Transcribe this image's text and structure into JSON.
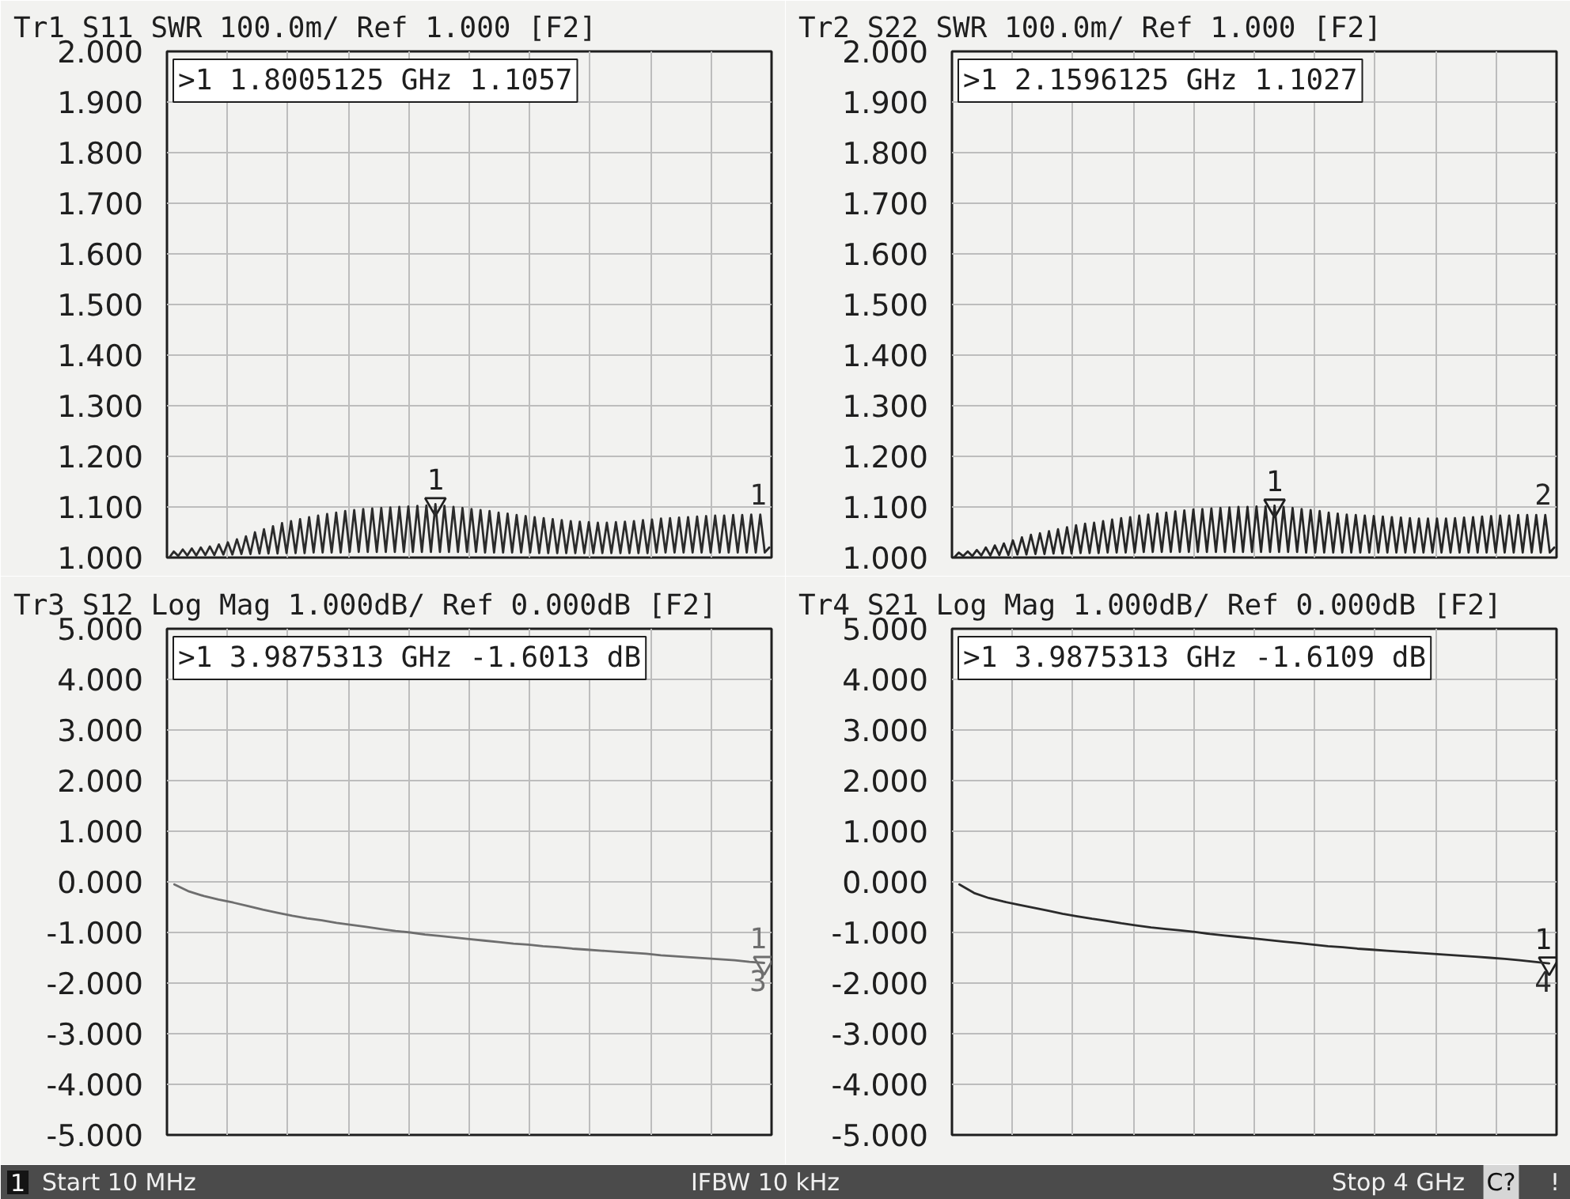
{
  "chart_data": [
    {
      "type": "line",
      "title": "Tr1 S11 SWR 100.0m/ Ref 1.000 [F2]",
      "categories": [
        null,
        null,
        null,
        null,
        null,
        null,
        null,
        null,
        null,
        null,
        null,
        null,
        null,
        null,
        null,
        null,
        null,
        null,
        null,
        null,
        null,
        null,
        null,
        null,
        null,
        null,
        null,
        null,
        null,
        null,
        null,
        null,
        null,
        null,
        null,
        null,
        null,
        null,
        null,
        null,
        null,
        null,
        null,
        null,
        null,
        null,
        null,
        null,
        null,
        null,
        null,
        null,
        null,
        null,
        null,
        null,
        null,
        null,
        null,
        null,
        null,
        null,
        null,
        null,
        null,
        null,
        null,
        null,
        null,
        null,
        null,
        null,
        null,
        null,
        null,
        null,
        null,
        null,
        null,
        null,
        null,
        null,
        null,
        null,
        null,
        null,
        null,
        null,
        null,
        null,
        null,
        null,
        null,
        null,
        null,
        null,
        null,
        null,
        null,
        null,
        null,
        null,
        null,
        null,
        null,
        null,
        null,
        null,
        null,
        null,
        null,
        null,
        null,
        null,
        null,
        null,
        null,
        null,
        null,
        null,
        null,
        null,
        null,
        null,
        null,
        null,
        null,
        null,
        null,
        null,
        null,
        null,
        null,
        null
      ],
      "series": [
        {
          "type": "scatter",
          "name": "1",
          "color": "#1e1e1e",
          "marker": "triangle",
          "values": [
            null,
            null,
            null,
            null,
            null,
            null,
            null,
            null,
            null,
            null,
            null,
            null,
            null,
            null,
            null,
            null,
            null,
            null,
            null,
            null,
            null,
            null,
            null,
            null,
            null,
            null,
            null,
            null,
            null,
            null,
            null,
            null,
            null,
            null,
            null,
            null,
            null,
            null,
            null,
            null,
            null,
            null,
            null,
            null,
            null,
            null,
            null,
            null,
            null,
            null,
            null,
            null,
            null,
            null,
            null,
            null,
            null,
            null,
            null,
            1.1057,
            null,
            null,
            null,
            null,
            null,
            null,
            null,
            null,
            null,
            null,
            null,
            null,
            null,
            null,
            null,
            null,
            null,
            null,
            null,
            null,
            null,
            null,
            null,
            null,
            null,
            null,
            null,
            null,
            null,
            null,
            null,
            null,
            null,
            null,
            null,
            null,
            null,
            null,
            null,
            null,
            null,
            null,
            null,
            null,
            null,
            null,
            null,
            null,
            null,
            null,
            null,
            null,
            null,
            null,
            null,
            null,
            null,
            null,
            null,
            null,
            null,
            null,
            null,
            null,
            null,
            null,
            null,
            null,
            null,
            null,
            null,
            null,
            null,
            null
          ]
        },
        {
          "name": "1",
          "color": "#2b2b2b",
          "values": [
            1.0,
            1.012,
            1.003,
            1.016,
            1.004,
            1.018,
            1.004,
            1.02,
            1.005,
            1.022,
            1.005,
            1.026,
            1.006,
            1.03,
            1.006,
            1.036,
            1.007,
            1.042,
            1.007,
            1.05,
            1.008,
            1.056,
            1.008,
            1.062,
            1.008,
            1.068,
            1.009,
            1.072,
            1.009,
            1.076,
            1.009,
            1.08,
            1.01,
            1.083,
            1.01,
            1.086,
            1.01,
            1.089,
            1.01,
            1.092,
            1.011,
            1.094,
            1.011,
            1.096,
            1.011,
            1.097,
            1.011,
            1.098,
            1.011,
            1.099,
            1.011,
            1.1,
            1.011,
            1.101,
            1.011,
            1.102,
            1.011,
            1.103,
            1.011,
            1.1057,
            1.011,
            1.102,
            1.011,
            1.1,
            1.011,
            1.098,
            1.011,
            1.096,
            1.011,
            1.094,
            1.01,
            1.092,
            1.01,
            1.089,
            1.01,
            1.087,
            1.01,
            1.084,
            1.01,
            1.082,
            1.01,
            1.08,
            1.009,
            1.078,
            1.009,
            1.076,
            1.009,
            1.074,
            1.009,
            1.072,
            1.009,
            1.071,
            1.009,
            1.07,
            1.009,
            1.069,
            1.009,
            1.069,
            1.009,
            1.07,
            1.009,
            1.071,
            1.009,
            1.072,
            1.009,
            1.074,
            1.009,
            1.075,
            1.01,
            1.077,
            1.01,
            1.078,
            1.01,
            1.079,
            1.01,
            1.08,
            1.01,
            1.081,
            1.01,
            1.082,
            1.01,
            1.083,
            1.01,
            1.083,
            1.01,
            1.084,
            1.01,
            1.084,
            1.01,
            1.085,
            1.01,
            1.085,
            1.01,
            1.02
          ]
        }
      ],
      "ylim": [
        1.0,
        2.0
      ],
      "yticks": [
        {
          "value": 1.0,
          "label": "1.000"
        },
        {
          "value": 1.1,
          "label": "1.100"
        },
        {
          "value": 1.2,
          "label": "1.200"
        },
        {
          "value": 1.3,
          "label": "1.300"
        },
        {
          "value": 1.4,
          "label": "1.400"
        },
        {
          "value": 1.5,
          "label": "1.500"
        },
        {
          "value": 1.6,
          "label": "1.600"
        },
        {
          "value": 1.7,
          "label": "1.700"
        },
        {
          "value": 1.8,
          "label": "1.800"
        },
        {
          "value": 1.9,
          "label": "1.900"
        },
        {
          "value": 2.0,
          "label": "2.000"
        }
      ],
      "tick_labels": "y",
      "grid": true,
      "annotations": [
        ">1 1.8005125 GHz 1.1057"
      ]
    },
    {
      "type": "line",
      "title": "Tr2 S22 SWR 100.0m/ Ref 1.000 [F2]",
      "categories": [
        null,
        null,
        null,
        null,
        null,
        null,
        null,
        null,
        null,
        null,
        null,
        null,
        null,
        null,
        null,
        null,
        null,
        null,
        null,
        null,
        null,
        null,
        null,
        null,
        null,
        null,
        null,
        null,
        null,
        null,
        null,
        null,
        null,
        null,
        null,
        null,
        null,
        null,
        null,
        null,
        null,
        null,
        null,
        null,
        null,
        null,
        null,
        null,
        null,
        null,
        null,
        null,
        null,
        null,
        null,
        null,
        null,
        null,
        null,
        null,
        null,
        null,
        null,
        null,
        null,
        null,
        null,
        null,
        null,
        null,
        null,
        null,
        null,
        null,
        null,
        null,
        null,
        null,
        null,
        null,
        null,
        null,
        null,
        null,
        null,
        null,
        null,
        null,
        null,
        null,
        null,
        null,
        null,
        null,
        null,
        null,
        null,
        null,
        null,
        null,
        null,
        null,
        null,
        null,
        null,
        null,
        null,
        null,
        null,
        null,
        null,
        null,
        null,
        null,
        null,
        null,
        null,
        null,
        null,
        null,
        null,
        null,
        null,
        null,
        null,
        null,
        null,
        null,
        null,
        null,
        null,
        null,
        null,
        null
      ],
      "series": [
        {
          "type": "scatter",
          "name": "1",
          "color": "#1e1e1e",
          "marker": "triangle",
          "values": [
            null,
            null,
            null,
            null,
            null,
            null,
            null,
            null,
            null,
            null,
            null,
            null,
            null,
            null,
            null,
            null,
            null,
            null,
            null,
            null,
            null,
            null,
            null,
            null,
            null,
            null,
            null,
            null,
            null,
            null,
            null,
            null,
            null,
            null,
            null,
            null,
            null,
            null,
            null,
            null,
            null,
            null,
            null,
            null,
            null,
            null,
            null,
            null,
            null,
            null,
            null,
            null,
            null,
            null,
            null,
            null,
            null,
            null,
            null,
            null,
            null,
            null,
            null,
            null,
            null,
            null,
            null,
            null,
            null,
            null,
            null,
            1.1027,
            null,
            null,
            null,
            null,
            null,
            null,
            null,
            null,
            null,
            null,
            null,
            null,
            null,
            null,
            null,
            null,
            null,
            null,
            null,
            null,
            null,
            null,
            null,
            null,
            null,
            null,
            null,
            null,
            null,
            null,
            null,
            null,
            null,
            null,
            null,
            null,
            null,
            null,
            null,
            null,
            null,
            null,
            null,
            null,
            null,
            null,
            null,
            null,
            null,
            null,
            null,
            null,
            null,
            null,
            null,
            null,
            null,
            null,
            null,
            null,
            null,
            null
          ]
        },
        {
          "name": "2",
          "color": "#262626",
          "values": [
            1.0,
            1.01,
            1.003,
            1.012,
            1.003,
            1.015,
            1.004,
            1.02,
            1.004,
            1.024,
            1.005,
            1.028,
            1.005,
            1.034,
            1.006,
            1.04,
            1.006,
            1.045,
            1.007,
            1.048,
            1.007,
            1.052,
            1.008,
            1.056,
            1.008,
            1.06,
            1.008,
            1.064,
            1.009,
            1.067,
            1.009,
            1.069,
            1.009,
            1.072,
            1.01,
            1.075,
            1.01,
            1.078,
            1.01,
            1.08,
            1.01,
            1.083,
            1.011,
            1.085,
            1.011,
            1.087,
            1.011,
            1.089,
            1.011,
            1.091,
            1.011,
            1.093,
            1.011,
            1.095,
            1.011,
            1.096,
            1.011,
            1.097,
            1.011,
            1.098,
            1.011,
            1.099,
            1.011,
            1.1,
            1.011,
            1.1,
            1.011,
            1.101,
            1.011,
            1.101,
            1.011,
            1.1027,
            1.011,
            1.1,
            1.011,
            1.098,
            1.011,
            1.096,
            1.01,
            1.094,
            1.01,
            1.092,
            1.01,
            1.089,
            1.01,
            1.087,
            1.01,
            1.085,
            1.01,
            1.084,
            1.01,
            1.083,
            1.01,
            1.082,
            1.01,
            1.081,
            1.01,
            1.08,
            1.01,
            1.079,
            1.01,
            1.078,
            1.01,
            1.077,
            1.01,
            1.077,
            1.01,
            1.077,
            1.01,
            1.077,
            1.01,
            1.078,
            1.01,
            1.079,
            1.01,
            1.08,
            1.01,
            1.081,
            1.01,
            1.082,
            1.01,
            1.083,
            1.01,
            1.083,
            1.01,
            1.084,
            1.01,
            1.084,
            1.01,
            1.084,
            1.01,
            1.084,
            1.01,
            1.02
          ]
        }
      ],
      "ylim": [
        1.0,
        2.0
      ],
      "yticks": [
        {
          "value": 1.0,
          "label": "1.000"
        },
        {
          "value": 1.1,
          "label": "1.100"
        },
        {
          "value": 1.2,
          "label": "1.200"
        },
        {
          "value": 1.3,
          "label": "1.300"
        },
        {
          "value": 1.4,
          "label": "1.400"
        },
        {
          "value": 1.5,
          "label": "1.500"
        },
        {
          "value": 1.6,
          "label": "1.600"
        },
        {
          "value": 1.7,
          "label": "1.700"
        },
        {
          "value": 1.8,
          "label": "1.800"
        },
        {
          "value": 1.9,
          "label": "1.900"
        },
        {
          "value": 2.0,
          "label": "2.000"
        }
      ],
      "tick_labels": "y",
      "grid": true,
      "annotations": [
        ">1 2.1596125 GHz 1.1027"
      ]
    },
    {
      "type": "line",
      "title": "Tr3 S12 Log Mag 1.000dB/ Ref 0.000dB [F2]",
      "categories": [
        null,
        null,
        null,
        null,
        null,
        null,
        null,
        null,
        null,
        null,
        null,
        null,
        null,
        null,
        null,
        null,
        null,
        null,
        null,
        null,
        null,
        null,
        null,
        null,
        null,
        null,
        null,
        null,
        null,
        null,
        null,
        null,
        null,
        null,
        null,
        null,
        null,
        null,
        null,
        null,
        null
      ],
      "series": [
        {
          "type": "scatter",
          "name": "1",
          "color": "#6e6e6e",
          "marker": "triangle",
          "values": [
            null,
            null,
            null,
            null,
            null,
            null,
            null,
            null,
            null,
            null,
            null,
            null,
            null,
            null,
            null,
            null,
            null,
            null,
            null,
            null,
            null,
            null,
            null,
            null,
            null,
            null,
            null,
            null,
            null,
            null,
            null,
            null,
            null,
            null,
            null,
            null,
            null,
            null,
            null,
            null,
            -1.6013
          ]
        },
        {
          "name": "3",
          "color": "#6e6e6e",
          "values": [
            -0.05,
            -0.19,
            -0.28,
            -0.35,
            -0.41,
            -0.48,
            -0.55,
            -0.61,
            -0.67,
            -0.72,
            -0.76,
            -0.81,
            -0.85,
            -0.89,
            -0.93,
            -0.97,
            -1.0,
            -1.04,
            -1.07,
            -1.1,
            -1.13,
            -1.16,
            -1.19,
            -1.22,
            -1.24,
            -1.27,
            -1.29,
            -1.32,
            -1.34,
            -1.36,
            -1.38,
            -1.4,
            -1.42,
            -1.45,
            -1.47,
            -1.49,
            -1.51,
            -1.53,
            -1.55,
            -1.58,
            -1.6013
          ]
        }
      ],
      "ylim": [
        -5,
        5
      ],
      "yticks": [
        {
          "value": -5,
          "label": "-5.000"
        },
        {
          "value": -4,
          "label": "-4.000"
        },
        {
          "value": -3,
          "label": "-3.000"
        },
        {
          "value": -2,
          "label": "-2.000"
        },
        {
          "value": -1,
          "label": "-1.000"
        },
        {
          "value": 0,
          "label": "0.000"
        },
        {
          "value": 1,
          "label": "1.000"
        },
        {
          "value": 2,
          "label": "2.000"
        },
        {
          "value": 3,
          "label": "3.000"
        },
        {
          "value": 4,
          "label": "4.000"
        },
        {
          "value": 5,
          "label": "5.000"
        }
      ],
      "tick_labels": "y",
      "grid": true,
      "annotations": [
        ">1 3.9875313 GHz -1.6013 dB",
        "1",
        "Start 10 MHz",
        "IFBW 10 kHz"
      ]
    },
    {
      "type": "line",
      "title": "Tr4 S21 Log Mag 1.000dB/ Ref 0.000dB [F2]",
      "categories": [
        null,
        null,
        null,
        null,
        null,
        null,
        null,
        null,
        null,
        null,
        null,
        null,
        null,
        null,
        null,
        null,
        null,
        null,
        null,
        null,
        null,
        null,
        null,
        null,
        null,
        null,
        null,
        null,
        null,
        null,
        null,
        null,
        null,
        null,
        null,
        null,
        null,
        null,
        null,
        null,
        null
      ],
      "series": [
        {
          "type": "scatter",
          "name": "1",
          "color": "#1e1e1e",
          "marker": "triangle",
          "values": [
            null,
            null,
            null,
            null,
            null,
            null,
            null,
            null,
            null,
            null,
            null,
            null,
            null,
            null,
            null,
            null,
            null,
            null,
            null,
            null,
            null,
            null,
            null,
            null,
            null,
            null,
            null,
            null,
            null,
            null,
            null,
            null,
            null,
            null,
            null,
            null,
            null,
            null,
            null,
            null,
            -1.6109
          ]
        },
        {
          "name": "4",
          "color": "#2b2b2b",
          "values": [
            -0.05,
            -0.22,
            -0.32,
            -0.39,
            -0.45,
            -0.51,
            -0.57,
            -0.63,
            -0.68,
            -0.73,
            -0.77,
            -0.82,
            -0.86,
            -0.9,
            -0.93,
            -0.96,
            -0.99,
            -1.03,
            -1.06,
            -1.09,
            -1.12,
            -1.15,
            -1.18,
            -1.21,
            -1.24,
            -1.27,
            -1.29,
            -1.32,
            -1.34,
            -1.36,
            -1.38,
            -1.4,
            -1.42,
            -1.44,
            -1.46,
            -1.48,
            -1.5,
            -1.52,
            -1.55,
            -1.58,
            -1.6109
          ]
        }
      ],
      "ylim": [
        -5,
        5
      ],
      "yticks": [
        {
          "value": -5,
          "label": "-5.000"
        },
        {
          "value": -4,
          "label": "-4.000"
        },
        {
          "value": -3,
          "label": "-3.000"
        },
        {
          "value": -2,
          "label": "-2.000"
        },
        {
          "value": -1,
          "label": "-1.000"
        },
        {
          "value": 0,
          "label": "0.000"
        },
        {
          "value": 1,
          "label": "1.000"
        },
        {
          "value": 2,
          "label": "2.000"
        },
        {
          "value": 3,
          "label": "3.000"
        },
        {
          "value": 4,
          "label": "4.000"
        },
        {
          "value": 5,
          "label": "5.000"
        }
      ],
      "tick_labels": "y",
      "grid": true,
      "annotations": [
        ">1 3.9875313 GHz -1.6109 dB",
        "Stop 4 GHz",
        "C?",
        "!"
      ]
    }
  ]
}
